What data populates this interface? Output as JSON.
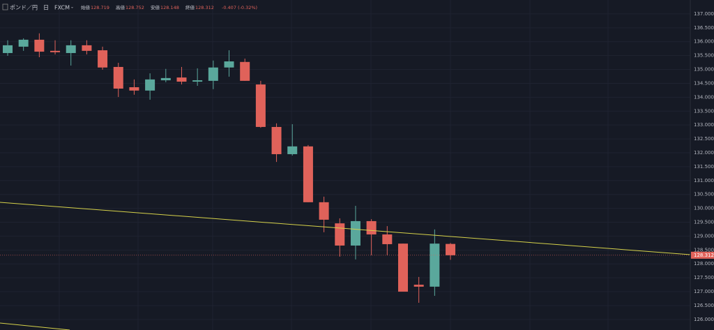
{
  "chart_data": {
    "type": "candlestick",
    "symbol": "ポンド／円",
    "interval": "日",
    "source": "FXCM",
    "ohlc_labels": [
      "始値",
      "高値",
      "安値",
      "終値"
    ],
    "ohlc_values": [
      128.719,
      128.752,
      128.148,
      128.312
    ],
    "change": "-0.407 (-0.32%)",
    "up_color": "#5aa89c",
    "down_color": "#e0625a",
    "open": [
      135.59,
      135.82,
      136.07,
      135.67,
      135.59,
      135.87,
      135.69,
      135.09,
      134.36,
      134.24,
      134.61,
      134.71,
      134.56,
      134.59,
      135.07,
      135.27,
      134.46,
      132.93,
      131.95,
      132.23,
      130.22,
      129.46,
      128.66,
      129.54,
      129.06,
      128.73,
      127.25,
      127.18,
      128.719
    ],
    "high": [
      136.05,
      136.12,
      136.3,
      136.05,
      136.05,
      136.05,
      135.82,
      135.24,
      134.64,
      134.86,
      135.02,
      135.09,
      135.04,
      135.32,
      135.69,
      135.39,
      134.59,
      133.06,
      133.03,
      132.28,
      130.42,
      129.64,
      130.09,
      129.61,
      129.36,
      128.73,
      127.53,
      129.24,
      128.752
    ],
    "low": [
      135.49,
      135.67,
      135.44,
      135.54,
      135.14,
      135.54,
      134.99,
      134.01,
      134.09,
      133.91,
      134.54,
      134.46,
      134.41,
      134.29,
      134.74,
      134.59,
      132.9,
      131.67,
      131.9,
      130.22,
      129.14,
      128.26,
      128.16,
      128.31,
      128.31,
      127.0,
      126.6,
      126.85,
      128.148
    ],
    "close": [
      135.87,
      136.07,
      135.64,
      135.62,
      135.87,
      135.67,
      135.07,
      134.31,
      134.24,
      134.64,
      134.69,
      134.56,
      134.61,
      135.07,
      135.29,
      134.59,
      132.93,
      131.95,
      132.23,
      130.22,
      129.59,
      128.66,
      129.54,
      129.06,
      128.71,
      127.0,
      127.18,
      128.73,
      128.312
    ],
    "last_price": 128.312,
    "ylim": [
      125.62,
      137.5
    ],
    "yticks": [
      {
        "value": 126,
        "label": "126.000"
      },
      {
        "value": 126.5,
        "label": "126.500"
      },
      {
        "value": 127,
        "label": "127.000"
      },
      {
        "value": 127.5,
        "label": "127.500"
      },
      {
        "value": 128,
        "label": "128.000"
      },
      {
        "value": 128.5,
        "label": "128.500"
      },
      {
        "value": 129,
        "label": "129.000"
      },
      {
        "value": 129.5,
        "label": "129.500"
      },
      {
        "value": 130,
        "label": "130.000"
      },
      {
        "value": 130.5,
        "label": "130.500"
      },
      {
        "value": 131,
        "label": "131.000"
      },
      {
        "value": 131.5,
        "label": "131.500"
      },
      {
        "value": 132,
        "label": "132.000"
      },
      {
        "value": 132.5,
        "label": "132.500"
      },
      {
        "value": 133,
        "label": "133.000"
      },
      {
        "value": 133.5,
        "label": "133.500"
      },
      {
        "value": 134,
        "label": "134.000"
      },
      {
        "value": 134.5,
        "label": "134.500"
      },
      {
        "value": 135,
        "label": "135.000"
      },
      {
        "value": 135.5,
        "label": "135.500"
      },
      {
        "value": 136,
        "label": "136.000"
      },
      {
        "value": 136.5,
        "label": "136.500"
      },
      {
        "value": 137,
        "label": "137.000"
      }
    ],
    "grid": true
  }
}
